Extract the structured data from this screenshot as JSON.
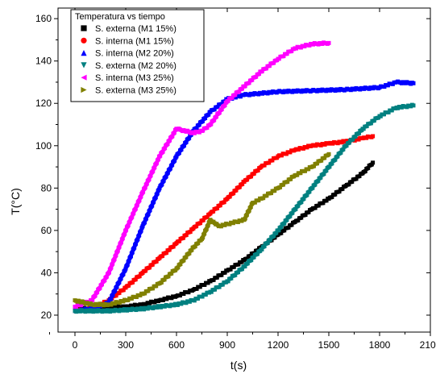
{
  "chart_data": {
    "type": "scatter",
    "title": "",
    "xlabel": "t(s)",
    "ylabel": "T(°C)",
    "xlim": [
      -100,
      2100
    ],
    "ylim": [
      12,
      165
    ],
    "x_ticks": [
      0,
      300,
      600,
      900,
      1200,
      1500,
      1800,
      2100
    ],
    "y_ticks": [
      20,
      40,
      60,
      80,
      100,
      120,
      140,
      160
    ],
    "legend": {
      "title": "Temperatura vs tiempo",
      "placement": "top-left"
    },
    "series": [
      {
        "name": "S. externa (M1 15%)",
        "color": "#000000",
        "marker": "square",
        "x": [
          0,
          100,
          200,
          300,
          400,
          500,
          600,
          700,
          800,
          900,
          1000,
          1100,
          1200,
          1300,
          1400,
          1500,
          1600,
          1700,
          1760
        ],
        "y": [
          23,
          23,
          23.5,
          24,
          25,
          27,
          29,
          32,
          36,
          41,
          46,
          52,
          58,
          64,
          70,
          75,
          81,
          87,
          92
        ]
      },
      {
        "name": "S. interna (M1 15%)",
        "color": "#ff0000",
        "marker": "circle",
        "x": [
          0,
          100,
          200,
          300,
          400,
          500,
          600,
          700,
          800,
          900,
          1000,
          1100,
          1200,
          1300,
          1400,
          1500,
          1600,
          1700,
          1760
        ],
        "y": [
          22,
          23,
          27,
          33,
          40,
          47,
          54,
          61,
          68,
          75,
          83,
          90,
          95,
          98,
          100,
          101,
          102,
          103.5,
          104.5
        ]
      },
      {
        "name": "S. interna (M2 20%)",
        "color": "#0000ff",
        "marker": "triangle-up",
        "x": [
          0,
          100,
          200,
          300,
          400,
          500,
          600,
          700,
          800,
          900,
          1000,
          1200,
          1400,
          1600,
          1800,
          1900,
          2000
        ],
        "y": [
          22,
          23,
          26,
          42,
          62,
          80,
          95,
          107,
          116,
          122,
          124,
          125.5,
          126,
          126.5,
          127.5,
          130,
          129.5
        ]
      },
      {
        "name": "S. externa (M2 20%)",
        "color": "#008080",
        "marker": "triangle-down",
        "x": [
          0,
          100,
          200,
          300,
          400,
          500,
          600,
          700,
          800,
          900,
          1000,
          1100,
          1200,
          1300,
          1400,
          1500,
          1600,
          1700,
          1800,
          1900,
          2000
        ],
        "y": [
          22,
          22,
          22,
          22.5,
          23,
          24,
          25,
          27,
          31,
          36,
          43,
          51,
          60,
          70,
          80,
          90,
          100,
          108,
          114,
          118,
          119
        ]
      },
      {
        "name": "S. interna (M3 25%)",
        "color": "#ff00ff",
        "marker": "triangle-left",
        "x": [
          0,
          100,
          200,
          300,
          400,
          500,
          600,
          650,
          700,
          750,
          800,
          900,
          1000,
          1100,
          1200,
          1300,
          1400,
          1500
        ],
        "y": [
          24,
          27,
          40,
          60,
          78,
          95,
          108,
          107,
          106,
          107,
          110,
          121,
          128,
          135,
          141,
          146,
          148,
          148.5
        ]
      },
      {
        "name": "S. externa (M3 25%)",
        "color": "#808000",
        "marker": "triangle-right",
        "x": [
          0,
          100,
          200,
          300,
          400,
          500,
          600,
          700,
          750,
          800,
          850,
          900,
          1000,
          1050,
          1100,
          1200,
          1300,
          1400,
          1500
        ],
        "y": [
          27,
          25,
          25,
          27,
          30,
          35,
          42,
          52,
          56,
          65,
          62,
          63,
          65,
          73,
          75,
          80,
          86,
          90,
          96
        ]
      }
    ]
  }
}
